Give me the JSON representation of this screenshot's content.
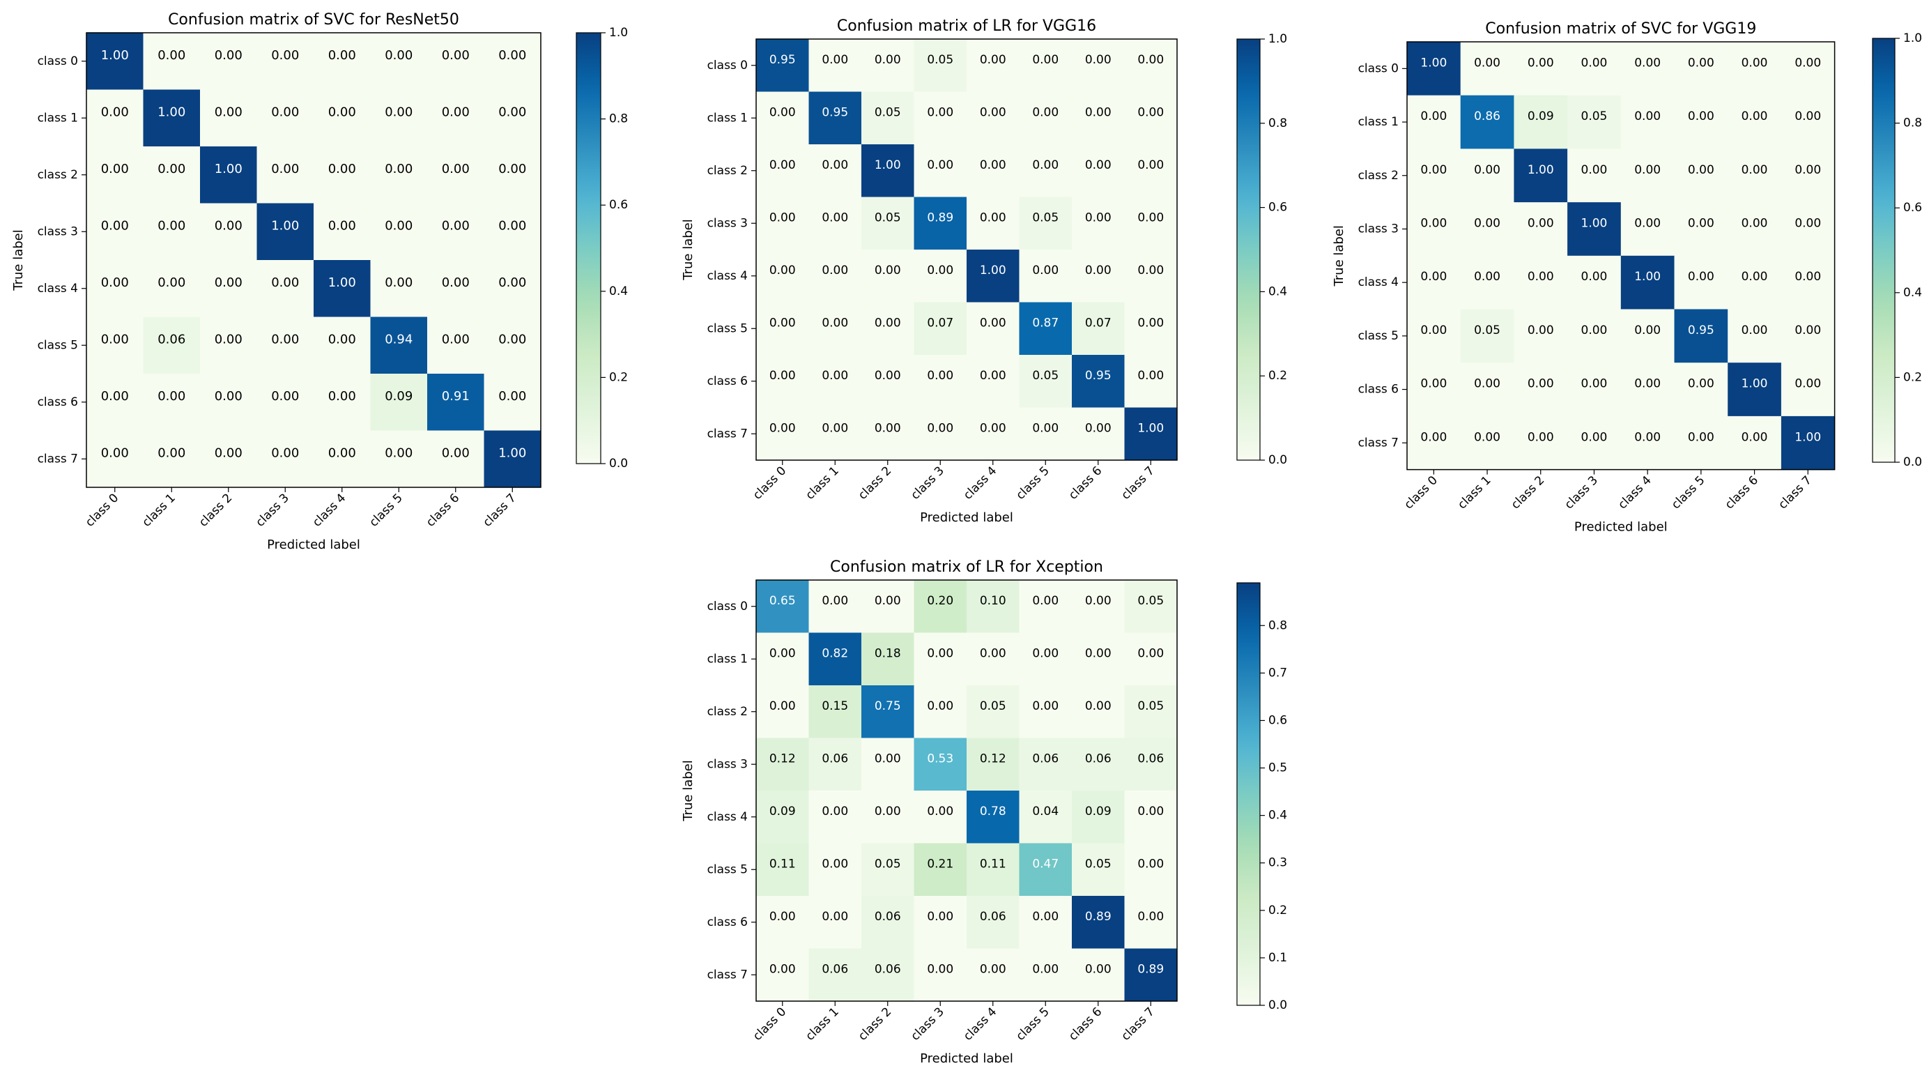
{
  "chart_data": [
    {
      "type": "heatmap",
      "title": "Confusion matrix of SVC for ResNet50",
      "xlabel": "Predicted label",
      "ylabel": "True label",
      "categories": [
        "class 0",
        "class 1",
        "class 2",
        "class 3",
        "class 4",
        "class 5",
        "class 6",
        "class 7"
      ],
      "matrix": [
        [
          1.0,
          0.0,
          0.0,
          0.0,
          0.0,
          0.0,
          0.0,
          0.0
        ],
        [
          0.0,
          1.0,
          0.0,
          0.0,
          0.0,
          0.0,
          0.0,
          0.0
        ],
        [
          0.0,
          0.0,
          1.0,
          0.0,
          0.0,
          0.0,
          0.0,
          0.0
        ],
        [
          0.0,
          0.0,
          0.0,
          1.0,
          0.0,
          0.0,
          0.0,
          0.0
        ],
        [
          0.0,
          0.0,
          0.0,
          0.0,
          1.0,
          0.0,
          0.0,
          0.0
        ],
        [
          0.0,
          0.06,
          0.0,
          0.0,
          0.0,
          0.94,
          0.0,
          0.0
        ],
        [
          0.0,
          0.0,
          0.0,
          0.0,
          0.0,
          0.09,
          0.91,
          0.0
        ],
        [
          0.0,
          0.0,
          0.0,
          0.0,
          0.0,
          0.0,
          0.0,
          1.0
        ]
      ],
      "colorbar": {
        "range": [
          0,
          1.0
        ],
        "ticks": [
          "0.0",
          "0.2",
          "0.4",
          "0.6",
          "0.8",
          "1.0"
        ]
      }
    },
    {
      "type": "heatmap",
      "title": "Confusion matrix of LR for VGG16",
      "xlabel": "Predicted label",
      "ylabel": "True label",
      "categories": [
        "class 0",
        "class 1",
        "class 2",
        "class 3",
        "class 4",
        "class 5",
        "class 6",
        "class 7"
      ],
      "matrix": [
        [
          0.95,
          0.0,
          0.0,
          0.05,
          0.0,
          0.0,
          0.0,
          0.0
        ],
        [
          0.0,
          0.95,
          0.05,
          0.0,
          0.0,
          0.0,
          0.0,
          0.0
        ],
        [
          0.0,
          0.0,
          1.0,
          0.0,
          0.0,
          0.0,
          0.0,
          0.0
        ],
        [
          0.0,
          0.0,
          0.05,
          0.89,
          0.0,
          0.05,
          0.0,
          0.0
        ],
        [
          0.0,
          0.0,
          0.0,
          0.0,
          1.0,
          0.0,
          0.0,
          0.0
        ],
        [
          0.0,
          0.0,
          0.0,
          0.07,
          0.0,
          0.87,
          0.07,
          0.0
        ],
        [
          0.0,
          0.0,
          0.0,
          0.0,
          0.0,
          0.05,
          0.95,
          0.0
        ],
        [
          0.0,
          0.0,
          0.0,
          0.0,
          0.0,
          0.0,
          0.0,
          1.0
        ]
      ],
      "colorbar": {
        "range": [
          0,
          1.0
        ],
        "ticks": [
          "0.0",
          "0.2",
          "0.4",
          "0.6",
          "0.8",
          "1.0"
        ]
      }
    },
    {
      "type": "heatmap",
      "title": "Confusion matrix of SVC for VGG19",
      "xlabel": "Predicted label",
      "ylabel": "True label",
      "categories": [
        "class 0",
        "class 1",
        "class 2",
        "class 3",
        "class 4",
        "class 5",
        "class 6",
        "class 7"
      ],
      "matrix": [
        [
          1.0,
          0.0,
          0.0,
          0.0,
          0.0,
          0.0,
          0.0,
          0.0
        ],
        [
          0.0,
          0.86,
          0.09,
          0.05,
          0.0,
          0.0,
          0.0,
          0.0
        ],
        [
          0.0,
          0.0,
          1.0,
          0.0,
          0.0,
          0.0,
          0.0,
          0.0
        ],
        [
          0.0,
          0.0,
          0.0,
          1.0,
          0.0,
          0.0,
          0.0,
          0.0
        ],
        [
          0.0,
          0.0,
          0.0,
          0.0,
          1.0,
          0.0,
          0.0,
          0.0
        ],
        [
          0.0,
          0.05,
          0.0,
          0.0,
          0.0,
          0.95,
          0.0,
          0.0
        ],
        [
          0.0,
          0.0,
          0.0,
          0.0,
          0.0,
          0.0,
          1.0,
          0.0
        ],
        [
          0.0,
          0.0,
          0.0,
          0.0,
          0.0,
          0.0,
          0.0,
          1.0
        ]
      ],
      "colorbar": {
        "range": [
          0,
          1.0
        ],
        "ticks": [
          "0.0",
          "0.2",
          "0.4",
          "0.6",
          "0.8",
          "1.0"
        ]
      }
    },
    {
      "type": "heatmap",
      "title": "Confusion matrix of LR for Xception",
      "xlabel": "Predicted label",
      "ylabel": "True label",
      "categories": [
        "class 0",
        "class 1",
        "class 2",
        "class 3",
        "class 4",
        "class 5",
        "class 6",
        "class 7"
      ],
      "matrix": [
        [
          0.65,
          0.0,
          0.0,
          0.2,
          0.1,
          0.0,
          0.0,
          0.05
        ],
        [
          0.0,
          0.82,
          0.18,
          0.0,
          0.0,
          0.0,
          0.0,
          0.0
        ],
        [
          0.0,
          0.15,
          0.75,
          0.0,
          0.05,
          0.0,
          0.0,
          0.05
        ],
        [
          0.12,
          0.06,
          0.0,
          0.53,
          0.12,
          0.06,
          0.06,
          0.06
        ],
        [
          0.09,
          0.0,
          0.0,
          0.0,
          0.78,
          0.04,
          0.09,
          0.0
        ],
        [
          0.11,
          0.0,
          0.05,
          0.21,
          0.11,
          0.47,
          0.05,
          0.0
        ],
        [
          0.0,
          0.0,
          0.06,
          0.0,
          0.06,
          0.0,
          0.89,
          0.0
        ],
        [
          0.0,
          0.06,
          0.06,
          0.0,
          0.0,
          0.0,
          0.0,
          0.89
        ]
      ],
      "colorbar": {
        "range": [
          0,
          0.89
        ],
        "ticks": [
          "0.0",
          "0.1",
          "0.2",
          "0.3",
          "0.4",
          "0.5",
          "0.6",
          "0.7",
          "0.8"
        ]
      }
    }
  ]
}
